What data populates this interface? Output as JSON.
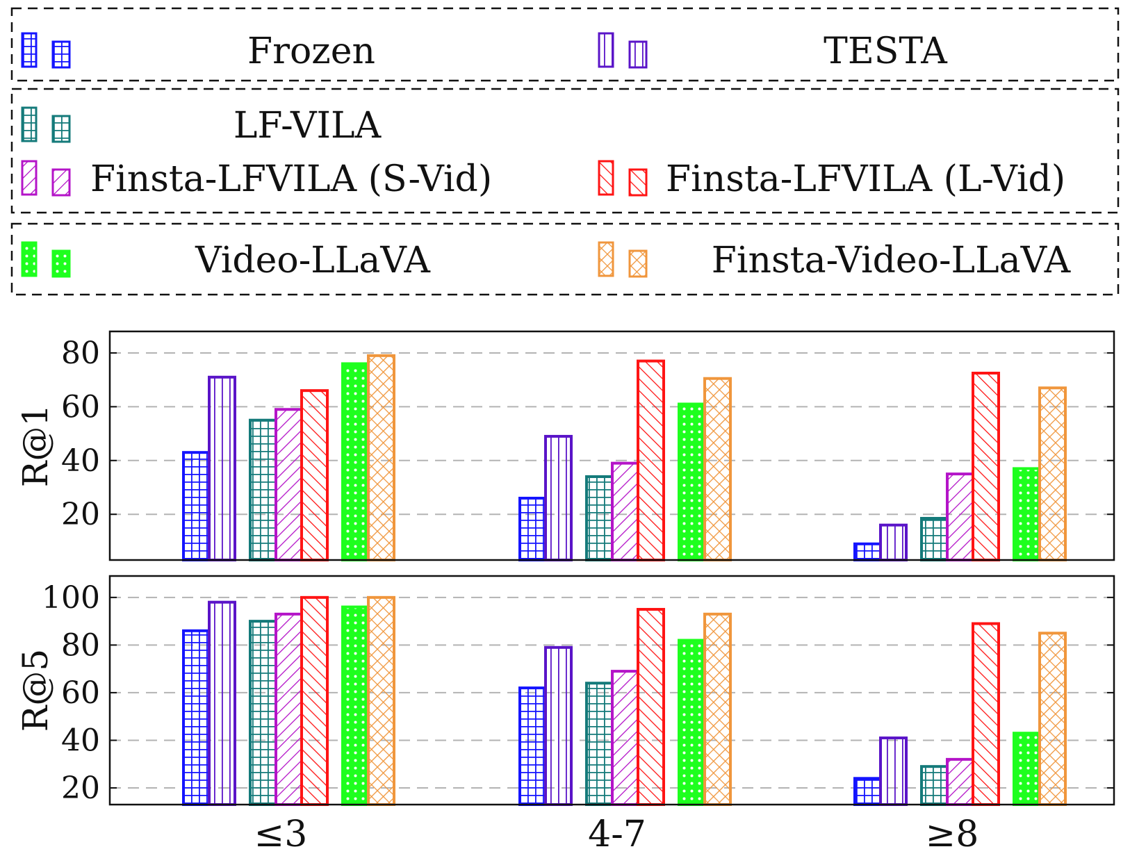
{
  "chart_data": {
    "type": "bar",
    "categories": [
      "≤3",
      "4-7",
      "≥8"
    ],
    "series_legend": [
      {
        "name": "Frozen",
        "color": "#1414ff",
        "pattern": "grid"
      },
      {
        "name": "TESTA",
        "color": "#5a14c8",
        "pattern": "vlines"
      },
      {
        "name": "LF-VILA",
        "color": "#147a7a",
        "pattern": "grid"
      },
      {
        "name": "Finsta-LFVILA (S-Vid)",
        "color": "#b414c8",
        "pattern": "diag-right"
      },
      {
        "name": "Finsta-LFVILA (L-Vid)",
        "color": "#ff1414",
        "pattern": "diag-left"
      },
      {
        "name": "Video-LLaVA",
        "color": "#1eff1e",
        "pattern": "dots"
      },
      {
        "name": "Finsta-Video-LLaVA",
        "color": "#f0963c",
        "pattern": "crosshatch"
      }
    ],
    "legend_groups": [
      [
        "Frozen",
        "TESTA"
      ],
      [
        "LF-VILA",
        "Finsta-LFVILA (S-Vid)",
        "Finsta-LFVILA (L-Vid)"
      ],
      [
        "Video-LLaVA",
        "Finsta-Video-LLaVA"
      ]
    ],
    "panels": [
      {
        "ylabel": "R@1",
        "yticks": [
          20,
          40,
          60,
          80
        ],
        "ylim": [
          3,
          88
        ],
        "grid": true,
        "series": [
          {
            "name": "Frozen",
            "values": [
              43,
              26,
              9
            ]
          },
          {
            "name": "TESTA",
            "values": [
              71,
              49,
              16
            ]
          },
          {
            "name": "LF-VILA",
            "values": [
              55,
              34,
              18.5
            ]
          },
          {
            "name": "Finsta-LFVILA (S-Vid)",
            "values": [
              59,
              39,
              35
            ]
          },
          {
            "name": "Finsta-LFVILA (L-Vid)",
            "values": [
              66,
              77,
              72.5
            ]
          },
          {
            "name": "Video-LLaVA",
            "values": [
              76,
              61,
              37
            ]
          },
          {
            "name": "Finsta-Video-LLaVA",
            "values": [
              79,
              70.5,
              67
            ]
          }
        ]
      },
      {
        "ylabel": "R@5",
        "yticks": [
          20,
          40,
          60,
          80,
          100
        ],
        "ylim": [
          13,
          109
        ],
        "grid": true,
        "series": [
          {
            "name": "Frozen",
            "values": [
              86,
              62,
              24
            ]
          },
          {
            "name": "TESTA",
            "values": [
              98,
              79,
              41
            ]
          },
          {
            "name": "LF-VILA",
            "values": [
              90,
              64,
              29
            ]
          },
          {
            "name": "Finsta-LFVILA (S-Vid)",
            "values": [
              93,
              69,
              32
            ]
          },
          {
            "name": "Finsta-LFVILA (L-Vid)",
            "values": [
              100,
              95,
              89
            ]
          },
          {
            "name": "Video-LLaVA",
            "values": [
              96,
              82,
              43
            ]
          },
          {
            "name": "Finsta-Video-LLaVA",
            "values": [
              100,
              93,
              85
            ]
          }
        ]
      }
    ]
  }
}
